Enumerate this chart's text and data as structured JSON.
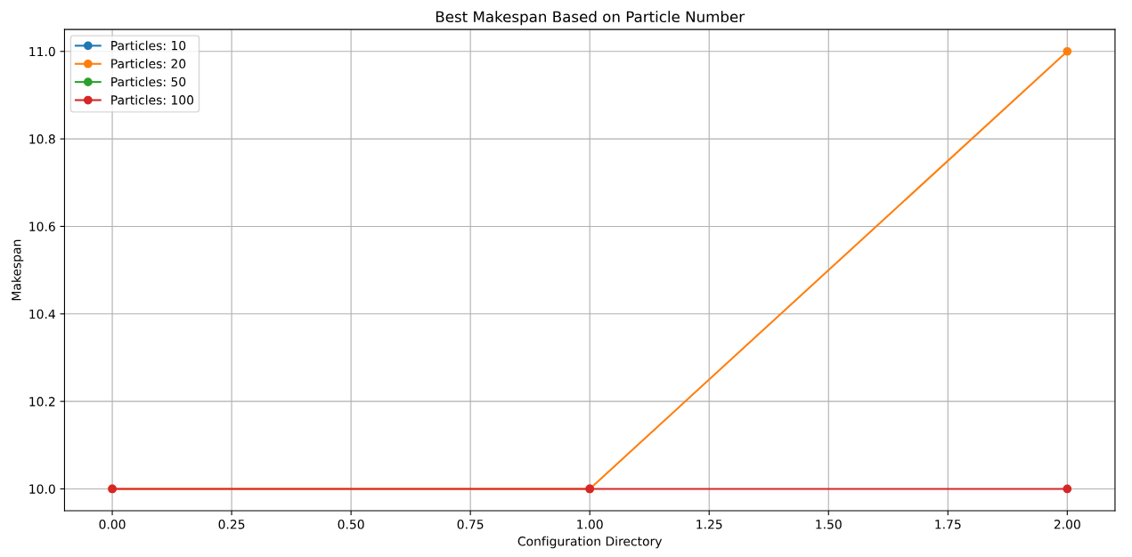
{
  "chart_data": {
    "type": "line",
    "title": "Best Makespan Based on Particle Number",
    "xlabel": "Configuration Directory",
    "ylabel": "Makespan",
    "x": [
      0,
      1,
      2
    ],
    "series": [
      {
        "name": "Particles: 10",
        "color": "#1f77b4",
        "values": [
          null,
          null,
          null
        ]
      },
      {
        "name": "Particles: 20",
        "color": "#ff7f0e",
        "values": [
          10,
          10,
          11
        ]
      },
      {
        "name": "Particles: 50",
        "color": "#2ca02c",
        "values": [
          null,
          null,
          null
        ]
      },
      {
        "name": "Particles: 100",
        "color": "#d62728",
        "values": [
          10,
          10,
          10
        ]
      }
    ],
    "xlim": [
      -0.1,
      2.1
    ],
    "xticks": [
      {
        "value": 0,
        "label": "0.00"
      },
      {
        "value": 0.25,
        "label": "0.25"
      },
      {
        "value": 0.5,
        "label": "0.50"
      },
      {
        "value": 0.75,
        "label": "0.75"
      },
      {
        "value": 1,
        "label": "1.00"
      },
      {
        "value": 1.25,
        "label": "1.25"
      },
      {
        "value": 1.5,
        "label": "1.50"
      },
      {
        "value": 1.75,
        "label": "1.75"
      },
      {
        "value": 2,
        "label": "2.00"
      }
    ],
    "ylim": [
      9.95,
      11.05
    ],
    "yticks": [
      {
        "value": 10,
        "label": "10.0"
      },
      {
        "value": 10.2,
        "label": "10.2"
      },
      {
        "value": 10.4,
        "label": "10.4"
      },
      {
        "value": 10.6,
        "label": "10.6"
      },
      {
        "value": 10.8,
        "label": "10.8"
      },
      {
        "value": 11,
        "label": "11.0"
      }
    ],
    "grid": true,
    "legend": "top left",
    "marker": "circle",
    "line_style": "solid"
  }
}
